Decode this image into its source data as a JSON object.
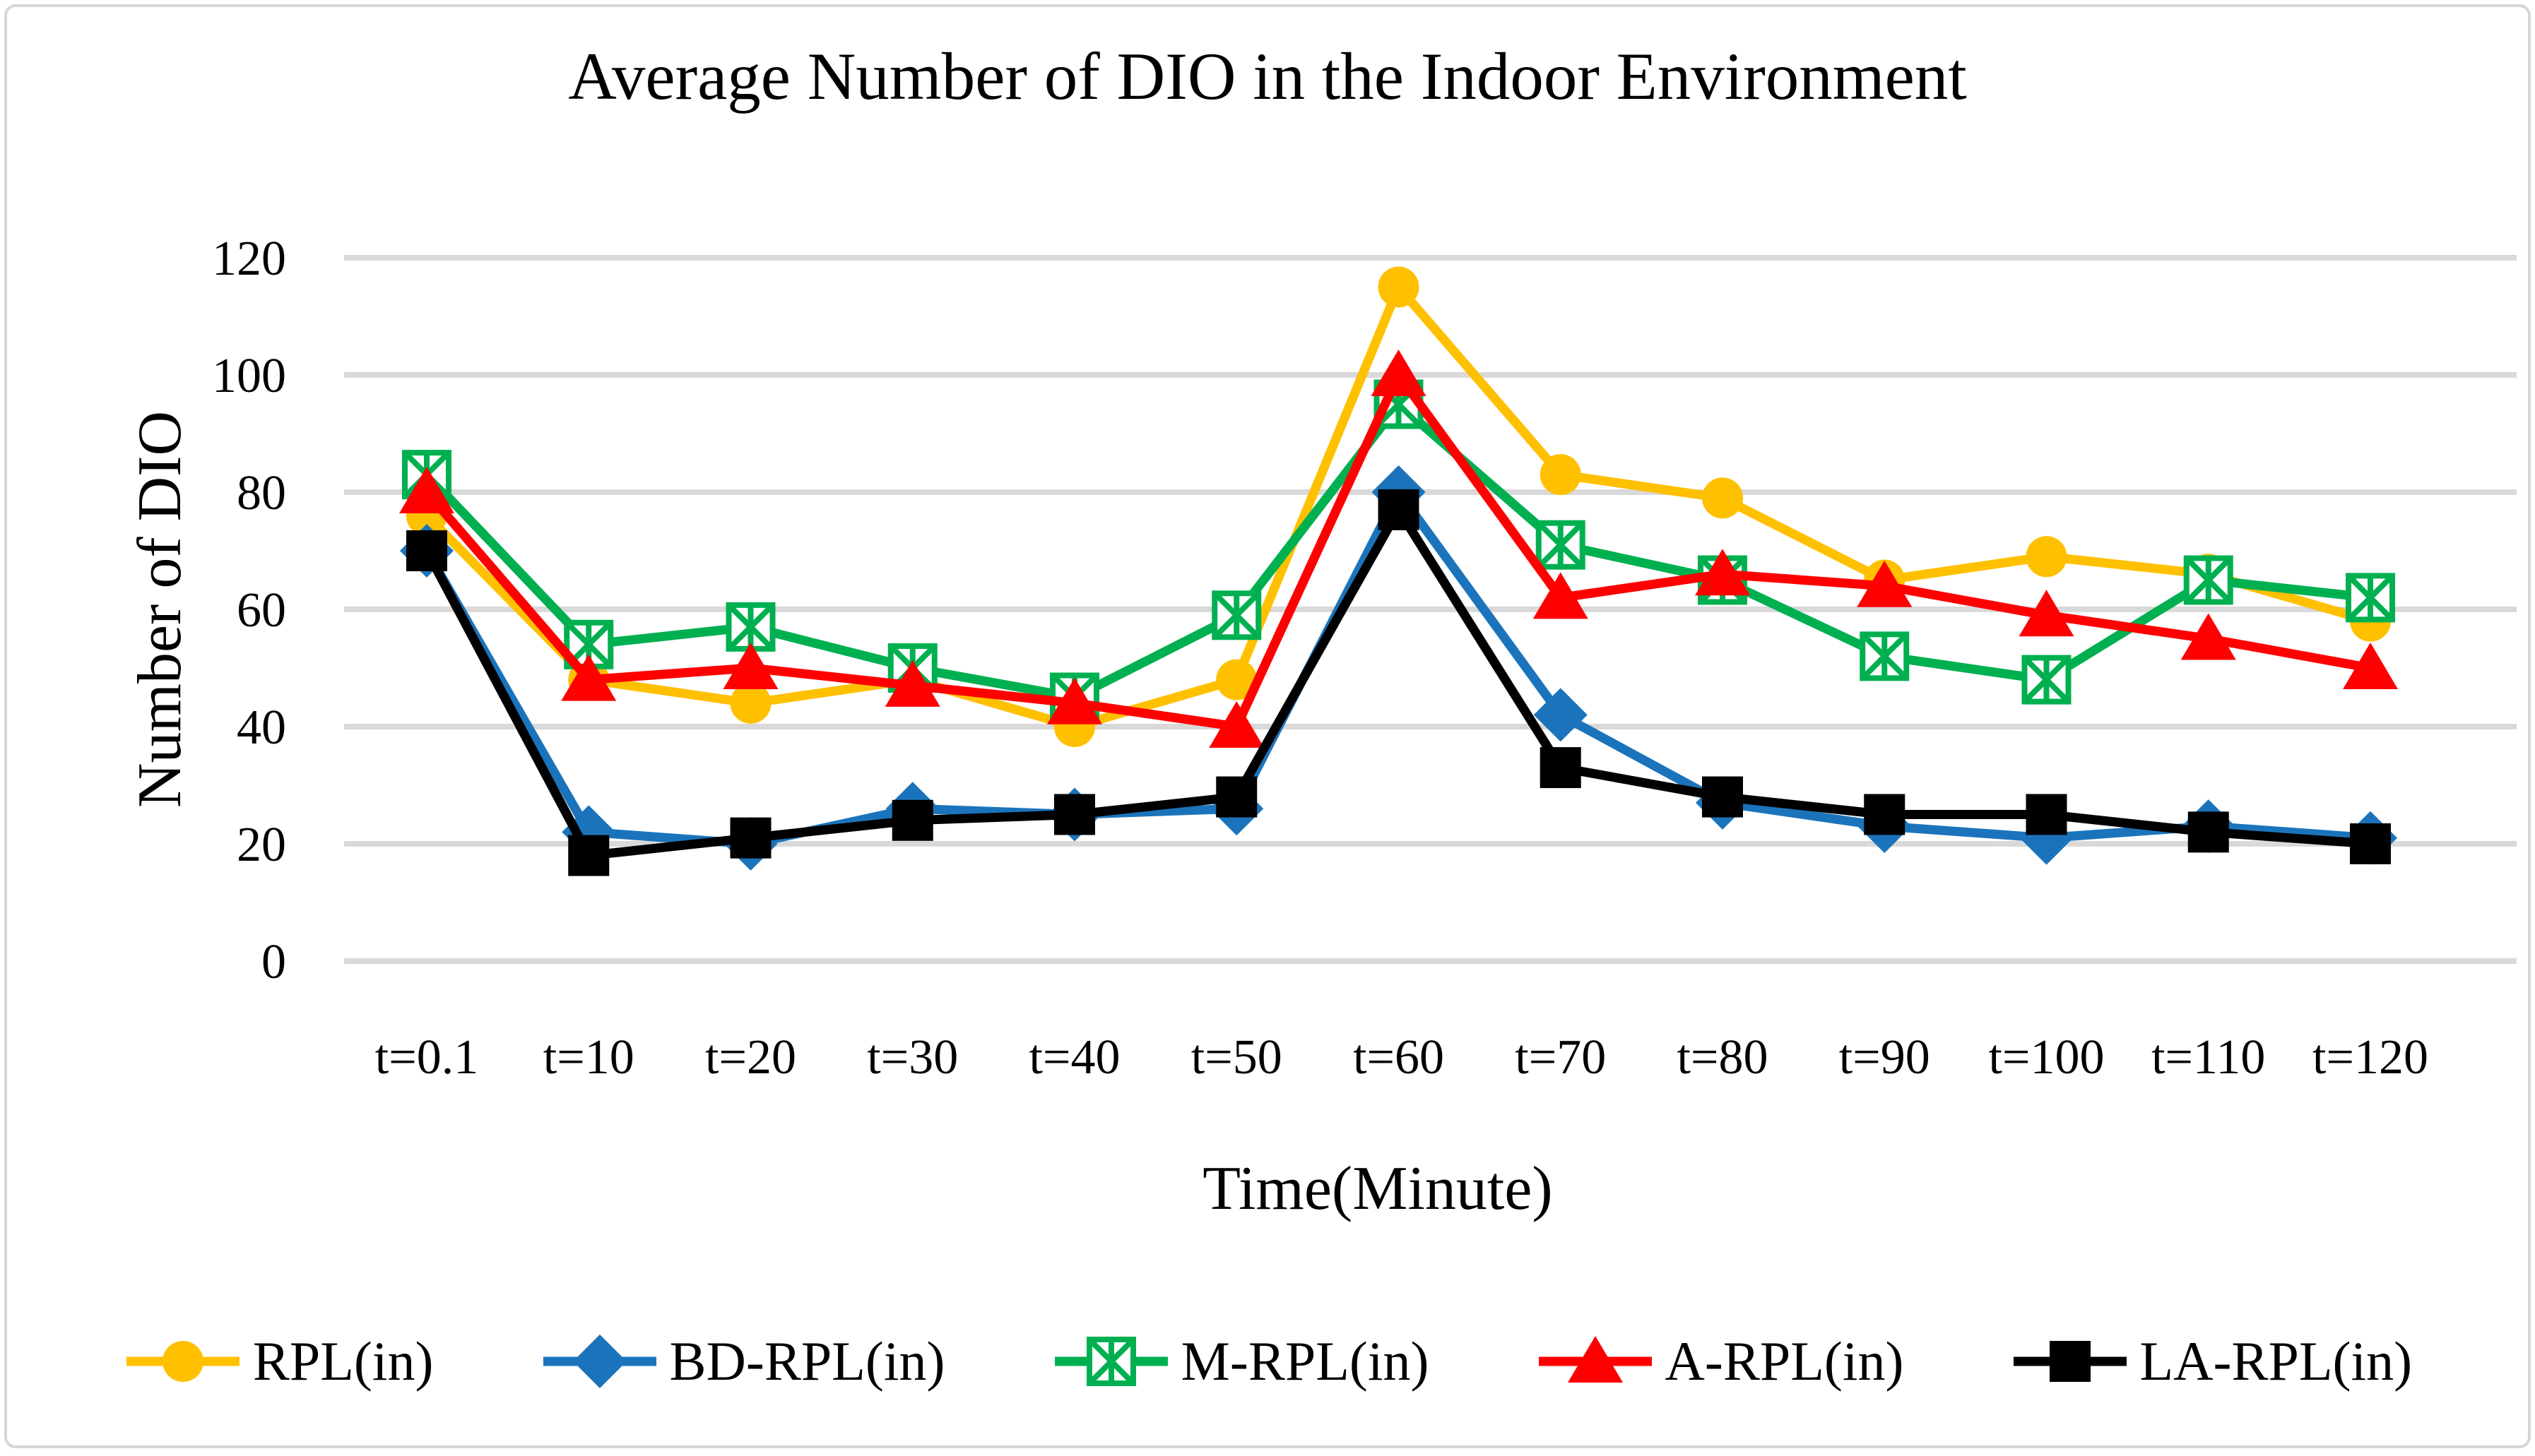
{
  "chart_data": {
    "type": "line",
    "title": "Average Number of DIO in the Indoor Environment",
    "xlabel": "Time(Minute)",
    "ylabel": "Number of DIO",
    "ylim": [
      0,
      120
    ],
    "ytick_step": 20,
    "yticks": [
      0,
      20,
      40,
      60,
      80,
      100,
      120
    ],
    "grid": true,
    "legend_position": "bottom",
    "gridline_color": "#d9d9d9",
    "categories": [
      "t=0.1",
      "t=10",
      "t=20",
      "t=30",
      "t=40",
      "t=50",
      "t=60",
      "t=70",
      "t=80",
      "t=90",
      "t=100",
      "t=110",
      "t=120"
    ],
    "series": [
      {
        "name": "RPL(in)",
        "color": "#FFC000",
        "marker": "circle",
        "values": [
          76,
          48,
          44,
          48,
          40,
          48,
          115,
          83,
          79,
          65,
          69,
          66,
          58
        ]
      },
      {
        "name": "BD-RPL(in)",
        "color": "#1B74BB",
        "marker": "diamond",
        "values": [
          70,
          22,
          20,
          26,
          25,
          26,
          80,
          42,
          27,
          23,
          21,
          23,
          21
        ]
      },
      {
        "name": "M-RPL(in)",
        "color": "#00B050",
        "marker": "xsquare",
        "values": [
          83,
          54,
          57,
          50,
          45,
          59,
          95,
          71,
          65,
          52,
          48,
          65,
          62
        ]
      },
      {
        "name": "A-RPL(in)",
        "color": "#FF0000",
        "marker": "triangle",
        "values": [
          80,
          48,
          50,
          47,
          44,
          40,
          100,
          62,
          66,
          64,
          59,
          55,
          50
        ]
      },
      {
        "name": "LA-RPL(in)",
        "color": "#000000",
        "marker": "square",
        "values": [
          70,
          18,
          21,
          24,
          25,
          28,
          77,
          33,
          28,
          25,
          25,
          22,
          20
        ]
      }
    ]
  }
}
